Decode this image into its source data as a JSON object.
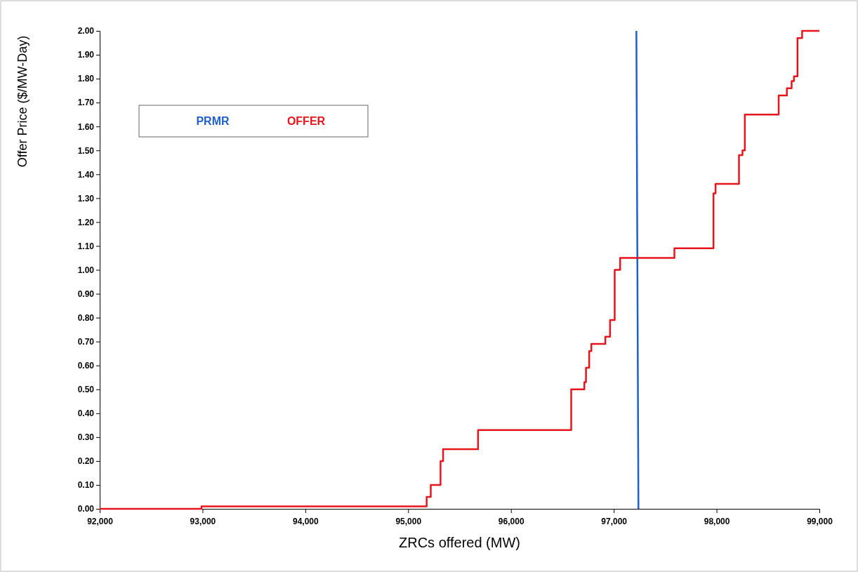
{
  "chart_data": {
    "type": "step",
    "xlabel": "ZRCs offered (MW)",
    "ylabel": "Offer Price ($/MW-Day)",
    "xlim": [
      92000,
      99000
    ],
    "xticks": [
      {
        "value": 92000,
        "label": "92,000"
      },
      {
        "value": 93000,
        "label": "93,000"
      },
      {
        "value": 94000,
        "label": "94,000"
      },
      {
        "value": 95000,
        "label": "95,000"
      },
      {
        "value": 96000,
        "label": "96,000"
      },
      {
        "value": 97000,
        "label": "97,000"
      },
      {
        "value": 98000,
        "label": "98,000"
      },
      {
        "value": 99000,
        "label": "99,000"
      }
    ],
    "ylim": [
      0,
      2
    ],
    "yticks": [
      {
        "value": 0,
        "label": "0.00"
      },
      {
        "value": 0.1,
        "label": "0.10"
      },
      {
        "value": 0.2,
        "label": "0.20"
      },
      {
        "value": 0.3,
        "label": "0.30"
      },
      {
        "value": 0.4,
        "label": "0.40"
      },
      {
        "value": 0.5,
        "label": "0.50"
      },
      {
        "value": 0.6,
        "label": "0.60"
      },
      {
        "value": 0.7,
        "label": "0.70"
      },
      {
        "value": 0.8,
        "label": "0.80"
      },
      {
        "value": 0.9,
        "label": "0.90"
      },
      {
        "value": 1,
        "label": "1.00"
      },
      {
        "value": 1.1,
        "label": "1.10"
      },
      {
        "value": 1.2,
        "label": "1.20"
      },
      {
        "value": 1.3,
        "label": "1.30"
      },
      {
        "value": 1.4,
        "label": "1.40"
      },
      {
        "value": 1.5,
        "label": "1.50"
      },
      {
        "value": 1.6,
        "label": "1.60"
      },
      {
        "value": 1.7,
        "label": "1.70"
      },
      {
        "value": 1.8,
        "label": "1.80"
      },
      {
        "value": 1.9,
        "label": "1.90"
      },
      {
        "value": 2,
        "label": "2.00"
      }
    ],
    "grid": false,
    "legend": "top left",
    "series": [
      {
        "name": "PRMR",
        "type": "line",
        "color": "#1f5fd0",
        "x": [
          97220,
          97240
        ],
        "values": [
          2.0,
          0
        ]
      },
      {
        "name": "OFFER",
        "color": "#e8141c",
        "x": [
          92000,
          92990,
          95180,
          95220,
          95315,
          95340,
          95680,
          96586,
          96714,
          96730,
          96761,
          96782,
          96861,
          96918,
          96964,
          97009,
          97062,
          97590,
          97970,
          97990,
          98218,
          98252,
          98275,
          98604,
          98684,
          98730,
          98753,
          98787,
          98832,
          99000
        ],
        "values": [
          0,
          0.01,
          0.05,
          0.1,
          0.2,
          0.25,
          0.33,
          0.5,
          0.53,
          0.59,
          0.66,
          0.69,
          0.69,
          0.72,
          0.79,
          1.0,
          1.05,
          1.09,
          1.32,
          1.36,
          1.48,
          1.5,
          1.65,
          1.73,
          1.76,
          1.79,
          1.81,
          1.97,
          2.0,
          2.0
        ]
      }
    ]
  }
}
